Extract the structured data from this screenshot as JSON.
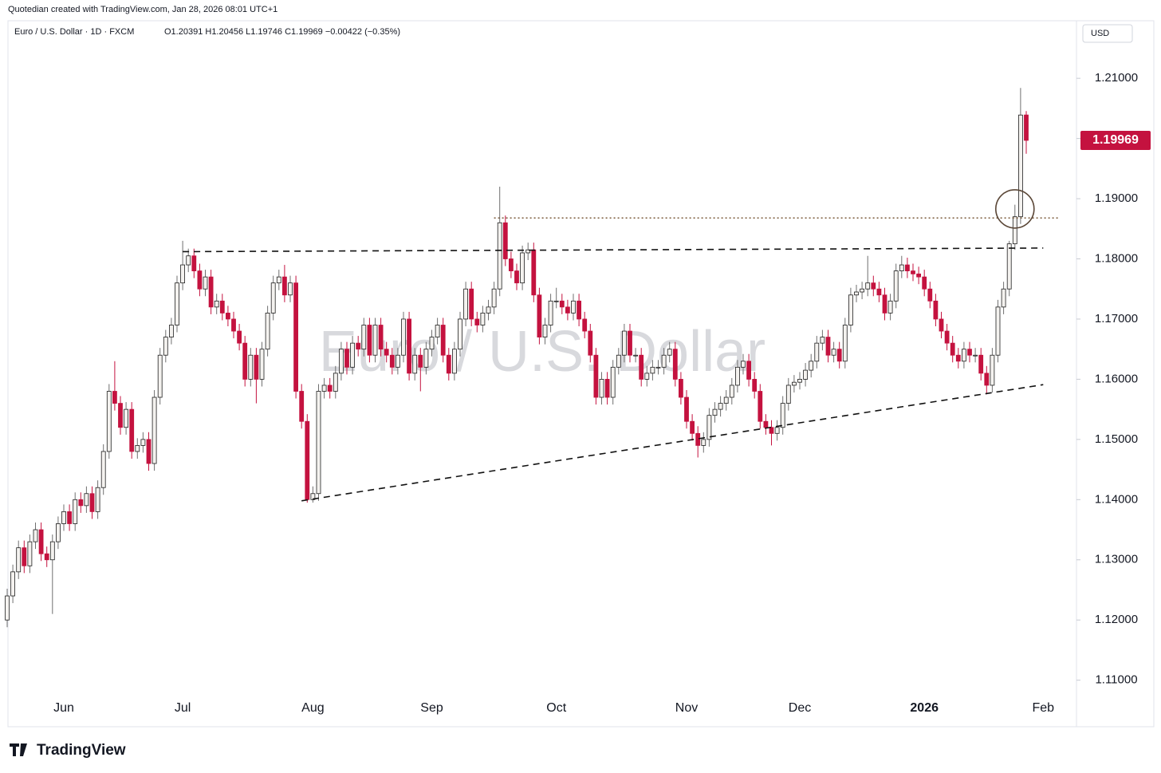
{
  "chart_data": {
    "type": "candlestick",
    "attribution": "Quotedian created with TradingView.com, Jan 28, 2026 08:01 UTC+1",
    "header": "Euro / U.S. Dollar · 1D · FXCM",
    "readout": "O1.20391  H1.20456  L1.19746  C1.19969  −0.00422 (−0.35%)",
    "watermark": "Euro / U.S. Dollar",
    "currency": "USD",
    "last_price_label": "1.19969",
    "logo": "TradingView",
    "up_color": "#f4f2ef",
    "down_color": "#c4123f",
    "border_color": "#1e1e1e",
    "ylim": [
      1.1077,
      1.2193
    ],
    "yticks": [
      {
        "value": 1.11,
        "label": "1.11000"
      },
      {
        "value": 1.12,
        "label": "1.12000"
      },
      {
        "value": 1.13,
        "label": "1.13000"
      },
      {
        "value": 1.14,
        "label": "1.14000"
      },
      {
        "value": 1.15,
        "label": "1.15000"
      },
      {
        "value": 1.16,
        "label": "1.16000"
      },
      {
        "value": 1.17,
        "label": "1.17000"
      },
      {
        "value": 1.18,
        "label": "1.18000"
      },
      {
        "value": 1.19,
        "label": "1.19000"
      },
      {
        "value": 1.2,
        "label": "1.20000"
      },
      {
        "value": 1.21,
        "label": "1.21000"
      }
    ],
    "categories": [
      null,
      null,
      null,
      null,
      null,
      null,
      null,
      null,
      null,
      null,
      "Jun",
      null,
      null,
      null,
      null,
      null,
      null,
      null,
      null,
      null,
      null,
      null,
      null,
      null,
      null,
      null,
      null,
      null,
      null,
      null,
      null,
      "Jul",
      null,
      null,
      null,
      null,
      null,
      null,
      null,
      null,
      null,
      null,
      null,
      null,
      null,
      null,
      null,
      null,
      null,
      null,
      null,
      null,
      null,
      null,
      "Aug",
      null,
      null,
      null,
      null,
      null,
      null,
      null,
      null,
      null,
      null,
      null,
      null,
      null,
      null,
      null,
      null,
      null,
      null,
      null,
      null,
      "Sep",
      null,
      null,
      null,
      null,
      null,
      null,
      null,
      null,
      null,
      null,
      null,
      null,
      null,
      null,
      null,
      null,
      null,
      null,
      null,
      null,
      null,
      "Oct",
      null,
      null,
      null,
      null,
      null,
      null,
      null,
      null,
      null,
      null,
      null,
      null,
      null,
      null,
      null,
      null,
      null,
      null,
      null,
      null,
      null,
      null,
      "Nov",
      null,
      null,
      null,
      null,
      null,
      null,
      null,
      null,
      null,
      null,
      null,
      null,
      null,
      null,
      null,
      null,
      null,
      null,
      null,
      "Dec",
      null,
      null,
      null,
      null,
      null,
      null,
      null,
      null,
      null,
      null,
      null,
      null,
      null,
      null,
      null,
      null,
      null,
      null,
      null,
      null,
      null,
      "2026",
      null,
      null,
      null,
      null,
      null,
      null,
      null,
      null,
      null,
      null,
      null,
      null,
      null,
      null,
      null,
      null,
      null,
      null,
      null,
      null,
      "Feb"
    ],
    "candles": [
      [
        1.12,
        1.1252,
        1.1188,
        1.124
      ],
      [
        1.124,
        1.1292,
        1.1228,
        1.128
      ],
      [
        1.128,
        1.1332,
        1.1268,
        1.132
      ],
      [
        1.132,
        1.1332,
        1.1278,
        1.129
      ],
      [
        1.129,
        1.1342,
        1.1278,
        1.133
      ],
      [
        1.133,
        1.1362,
        1.1318,
        1.135
      ],
      [
        1.135,
        1.1362,
        1.1298,
        1.131
      ],
      [
        1.131,
        1.1322,
        1.1288,
        1.13
      ],
      [
        1.13,
        1.1342,
        1.121,
        1.133
      ],
      [
        1.133,
        1.1372,
        1.1318,
        1.136
      ],
      [
        1.136,
        1.1392,
        1.1348,
        1.138
      ],
      [
        1.138,
        1.1392,
        1.1348,
        1.136
      ],
      [
        1.136,
        1.1412,
        1.1348,
        1.14
      ],
      [
        1.14,
        1.1412,
        1.1378,
        1.139
      ],
      [
        1.139,
        1.1422,
        1.1378,
        1.141
      ],
      [
        1.141,
        1.1422,
        1.1368,
        1.138
      ],
      [
        1.138,
        1.1432,
        1.1368,
        1.142
      ],
      [
        1.142,
        1.1492,
        1.1408,
        1.148
      ],
      [
        1.148,
        1.1592,
        1.1468,
        1.158
      ],
      [
        1.158,
        1.163,
        1.1548,
        1.156
      ],
      [
        1.156,
        1.1572,
        1.1508,
        1.152
      ],
      [
        1.152,
        1.1562,
        1.1508,
        1.155
      ],
      [
        1.155,
        1.1562,
        1.1468,
        1.148
      ],
      [
        1.148,
        1.1502,
        1.1468,
        1.149
      ],
      [
        1.149,
        1.1512,
        1.1478,
        1.15
      ],
      [
        1.15,
        1.1512,
        1.1448,
        1.146
      ],
      [
        1.146,
        1.1582,
        1.1448,
        1.157
      ],
      [
        1.157,
        1.1652,
        1.1558,
        1.164
      ],
      [
        1.164,
        1.1682,
        1.1628,
        1.167
      ],
      [
        1.167,
        1.1702,
        1.1658,
        1.169
      ],
      [
        1.169,
        1.1772,
        1.1678,
        1.176
      ],
      [
        1.176,
        1.183,
        1.1748,
        1.179
      ],
      [
        1.179,
        1.1817,
        1.1778,
        1.1805
      ],
      [
        1.1805,
        1.1817,
        1.1768,
        1.178
      ],
      [
        1.178,
        1.1792,
        1.1738,
        1.175
      ],
      [
        1.175,
        1.1782,
        1.1738,
        1.177
      ],
      [
        1.177,
        1.1782,
        1.1708,
        1.172
      ],
      [
        1.172,
        1.1742,
        1.1708,
        1.173
      ],
      [
        1.173,
        1.1742,
        1.1698,
        1.171
      ],
      [
        1.171,
        1.1722,
        1.1688,
        1.17
      ],
      [
        1.17,
        1.1712,
        1.1668,
        1.168
      ],
      [
        1.168,
        1.1692,
        1.1648,
        1.166
      ],
      [
        1.166,
        1.1672,
        1.1588,
        1.16
      ],
      [
        1.16,
        1.1652,
        1.1588,
        1.164
      ],
      [
        1.164,
        1.1652,
        1.156,
        1.16
      ],
      [
        1.16,
        1.1662,
        1.1588,
        1.165
      ],
      [
        1.165,
        1.1722,
        1.1638,
        1.171
      ],
      [
        1.171,
        1.1772,
        1.1698,
        1.176
      ],
      [
        1.176,
        1.1782,
        1.1748,
        1.177
      ],
      [
        1.177,
        1.179,
        1.1728,
        1.174
      ],
      [
        1.174,
        1.1772,
        1.1728,
        1.176
      ],
      [
        1.176,
        1.1772,
        1.1568,
        1.158
      ],
      [
        1.158,
        1.1592,
        1.1518,
        1.153
      ],
      [
        1.153,
        1.1542,
        1.1395,
        1.14
      ],
      [
        1.14,
        1.1422,
        1.1395,
        1.141
      ],
      [
        1.141,
        1.1592,
        1.1398,
        1.158
      ],
      [
        1.158,
        1.1602,
        1.1568,
        1.159
      ],
      [
        1.159,
        1.1602,
        1.1568,
        1.158
      ],
      [
        1.158,
        1.1622,
        1.1568,
        1.161
      ],
      [
        1.161,
        1.1662,
        1.1598,
        1.165
      ],
      [
        1.165,
        1.1662,
        1.1608,
        1.162
      ],
      [
        1.162,
        1.1672,
        1.1608,
        1.166
      ],
      [
        1.166,
        1.1672,
        1.1638,
        1.165
      ],
      [
        1.165,
        1.1702,
        1.1638,
        1.169
      ],
      [
        1.169,
        1.1702,
        1.1628,
        1.164
      ],
      [
        1.164,
        1.1702,
        1.1628,
        1.169
      ],
      [
        1.169,
        1.1702,
        1.1638,
        1.165
      ],
      [
        1.165,
        1.1662,
        1.1628,
        1.164
      ],
      [
        1.164,
        1.1652,
        1.1608,
        1.162
      ],
      [
        1.162,
        1.1652,
        1.1608,
        1.164
      ],
      [
        1.164,
        1.1712,
        1.1628,
        1.17
      ],
      [
        1.17,
        1.1712,
        1.1598,
        1.161
      ],
      [
        1.161,
        1.1652,
        1.1598,
        1.164
      ],
      [
        1.164,
        1.1652,
        1.158,
        1.162
      ],
      [
        1.162,
        1.1662,
        1.1608,
        1.165
      ],
      [
        1.165,
        1.1682,
        1.1638,
        1.167
      ],
      [
        1.167,
        1.1702,
        1.1658,
        1.169
      ],
      [
        1.169,
        1.1702,
        1.1628,
        1.164
      ],
      [
        1.164,
        1.1652,
        1.1598,
        1.161
      ],
      [
        1.161,
        1.1662,
        1.1598,
        1.165
      ],
      [
        1.165,
        1.1712,
        1.1638,
        1.17
      ],
      [
        1.17,
        1.1762,
        1.1688,
        1.175
      ],
      [
        1.175,
        1.1762,
        1.1688,
        1.17
      ],
      [
        1.17,
        1.1712,
        1.1678,
        1.169
      ],
      [
        1.169,
        1.1722,
        1.1678,
        1.171
      ],
      [
        1.171,
        1.1732,
        1.1698,
        1.172
      ],
      [
        1.172,
        1.1762,
        1.1708,
        1.175
      ],
      [
        1.175,
        1.192,
        1.1738,
        1.186
      ],
      [
        1.186,
        1.1872,
        1.1788,
        1.18
      ],
      [
        1.18,
        1.1812,
        1.1768,
        1.178
      ],
      [
        1.178,
        1.1792,
        1.1748,
        1.176
      ],
      [
        1.176,
        1.1822,
        1.1748,
        1.181
      ],
      [
        1.181,
        1.1827,
        1.1798,
        1.1815
      ],
      [
        1.1815,
        1.1827,
        1.1728,
        1.174
      ],
      [
        1.174,
        1.1752,
        1.1658,
        1.167
      ],
      [
        1.167,
        1.1702,
        1.1658,
        1.169
      ],
      [
        1.169,
        1.1742,
        1.1678,
        1.173
      ],
      [
        1.173,
        1.1752,
        1.1718,
        1.173
      ],
      [
        1.173,
        1.1742,
        1.1708,
        1.172
      ],
      [
        1.172,
        1.1732,
        1.1698,
        1.171
      ],
      [
        1.171,
        1.1742,
        1.1698,
        1.173
      ],
      [
        1.173,
        1.1742,
        1.1688,
        1.17
      ],
      [
        1.17,
        1.1712,
        1.1668,
        1.168
      ],
      [
        1.168,
        1.1692,
        1.1628,
        1.164
      ],
      [
        1.164,
        1.1652,
        1.1558,
        1.157
      ],
      [
        1.157,
        1.1612,
        1.1558,
        1.16
      ],
      [
        1.16,
        1.1612,
        1.1558,
        1.157
      ],
      [
        1.157,
        1.1632,
        1.1558,
        1.162
      ],
      [
        1.162,
        1.1652,
        1.1608,
        1.164
      ],
      [
        1.164,
        1.1692,
        1.1628,
        1.168
      ],
      [
        1.168,
        1.1692,
        1.1628,
        1.164
      ],
      [
        1.164,
        1.1652,
        1.1628,
        1.164
      ],
      [
        1.164,
        1.1652,
        1.1588,
        1.16
      ],
      [
        1.16,
        1.1622,
        1.1588,
        1.161
      ],
      [
        1.161,
        1.1632,
        1.1598,
        1.162
      ],
      [
        1.162,
        1.1632,
        1.1608,
        1.162
      ],
      [
        1.162,
        1.1652,
        1.1608,
        1.164
      ],
      [
        1.164,
        1.1662,
        1.1628,
        1.165
      ],
      [
        1.165,
        1.1662,
        1.1588,
        1.16
      ],
      [
        1.16,
        1.1612,
        1.1558,
        1.157
      ],
      [
        1.157,
        1.1582,
        1.1518,
        1.153
      ],
      [
        1.153,
        1.1542,
        1.1498,
        1.151
      ],
      [
        1.151,
        1.1522,
        1.147,
        1.149
      ],
      [
        1.149,
        1.1512,
        1.1478,
        1.15
      ],
      [
        1.15,
        1.1552,
        1.1488,
        1.154
      ],
      [
        1.154,
        1.1562,
        1.1528,
        1.155
      ],
      [
        1.155,
        1.1572,
        1.1538,
        1.156
      ],
      [
        1.156,
        1.1582,
        1.1548,
        1.157
      ],
      [
        1.157,
        1.1602,
        1.1558,
        1.159
      ],
      [
        1.159,
        1.1632,
        1.1578,
        1.162
      ],
      [
        1.162,
        1.1642,
        1.1608,
        1.163
      ],
      [
        1.163,
        1.1642,
        1.1588,
        1.16
      ],
      [
        1.16,
        1.1612,
        1.1568,
        1.158
      ],
      [
        1.158,
        1.1592,
        1.1518,
        1.153
      ],
      [
        1.153,
        1.1542,
        1.1508,
        1.152
      ],
      [
        1.152,
        1.1532,
        1.149,
        1.151
      ],
      [
        1.151,
        1.1532,
        1.1498,
        1.152
      ],
      [
        1.152,
        1.1572,
        1.1508,
        1.156
      ],
      [
        1.156,
        1.1602,
        1.1548,
        1.159
      ],
      [
        1.159,
        1.1607,
        1.1578,
        1.1595
      ],
      [
        1.1595,
        1.1612,
        1.1583,
        1.16
      ],
      [
        1.16,
        1.1627,
        1.1588,
        1.1615
      ],
      [
        1.1615,
        1.1642,
        1.1603,
        1.163
      ],
      [
        1.163,
        1.1672,
        1.1618,
        1.166
      ],
      [
        1.166,
        1.1682,
        1.1648,
        1.167
      ],
      [
        1.167,
        1.1682,
        1.1628,
        1.164
      ],
      [
        1.164,
        1.1662,
        1.1628,
        1.165
      ],
      [
        1.165,
        1.1662,
        1.1618,
        1.163
      ],
      [
        1.163,
        1.1702,
        1.1618,
        1.169
      ],
      [
        1.169,
        1.1752,
        1.1678,
        1.174
      ],
      [
        1.174,
        1.1757,
        1.1728,
        1.1745
      ],
      [
        1.1745,
        1.1762,
        1.1733,
        1.175
      ],
      [
        1.175,
        1.1805,
        1.1738,
        1.176
      ],
      [
        1.176,
        1.1772,
        1.1738,
        1.175
      ],
      [
        1.175,
        1.1762,
        1.1728,
        1.174
      ],
      [
        1.174,
        1.1752,
        1.1698,
        1.171
      ],
      [
        1.171,
        1.1742,
        1.1698,
        1.173
      ],
      [
        1.173,
        1.1792,
        1.1718,
        1.178
      ],
      [
        1.178,
        1.1805,
        1.1768,
        1.179
      ],
      [
        1.179,
        1.1802,
        1.1768,
        1.178
      ],
      [
        1.178,
        1.1792,
        1.1763,
        1.1775
      ],
      [
        1.1775,
        1.1787,
        1.1758,
        1.177
      ],
      [
        1.177,
        1.1782,
        1.1738,
        1.175
      ],
      [
        1.175,
        1.1762,
        1.1718,
        1.173
      ],
      [
        1.173,
        1.1742,
        1.1688,
        1.17
      ],
      [
        1.17,
        1.1712,
        1.1668,
        1.168
      ],
      [
        1.168,
        1.1692,
        1.1648,
        1.166
      ],
      [
        1.166,
        1.1672,
        1.1628,
        1.164
      ],
      [
        1.164,
        1.1652,
        1.1618,
        1.163
      ],
      [
        1.163,
        1.1662,
        1.1618,
        1.165
      ],
      [
        1.165,
        1.1662,
        1.1628,
        1.164
      ],
      [
        1.164,
        1.1652,
        1.1628,
        1.164
      ],
      [
        1.164,
        1.1652,
        1.1598,
        1.161
      ],
      [
        1.161,
        1.1622,
        1.1575,
        1.159
      ],
      [
        1.159,
        1.1652,
        1.1578,
        1.164
      ],
      [
        1.164,
        1.1732,
        1.1628,
        1.172
      ],
      [
        1.172,
        1.1762,
        1.1708,
        1.175
      ],
      [
        1.175,
        1.183,
        1.1738,
        1.1825
      ],
      [
        1.1825,
        1.189,
        1.1815,
        1.187
      ],
      [
        1.187,
        1.2084,
        1.1858,
        1.2039
      ],
      [
        1.20391,
        1.20456,
        1.19746,
        1.19969
      ],
      null,
      null,
      null
    ],
    "annotations": [
      {
        "shape": "line",
        "style": "dashed",
        "color": "#111111",
        "from": [
          31,
          1.1812
        ],
        "to": [
          183,
          1.1818
        ]
      },
      {
        "shape": "line",
        "style": "dashed",
        "color": "#111111",
        "from": [
          52,
          1.1398
        ],
        "to": [
          183,
          1.1591
        ]
      },
      {
        "shape": "line",
        "style": "dotted",
        "color": "#7a5a3a",
        "from": [
          86,
          1.1868
        ],
        "to": [
          186,
          1.1868
        ]
      },
      {
        "shape": "circle",
        "color": "#5a4636",
        "center": [
          178,
          1.1883
        ]
      }
    ]
  }
}
